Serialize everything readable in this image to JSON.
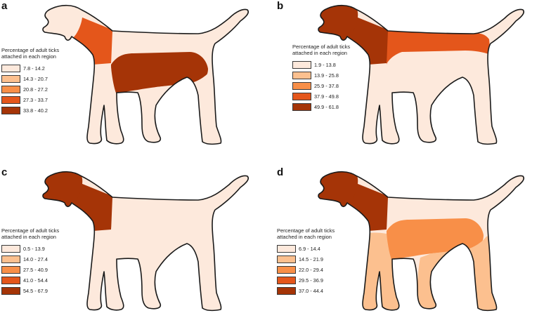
{
  "colors": {
    "outline": "#1a1a1a",
    "body": "#fde9dc"
  },
  "panels": [
    {
      "letter": "a",
      "legend_title": "Percentage of adult ticks\nattached in each region",
      "legend": [
        {
          "range": "7.8 - 14.2",
          "color": "#fde9dc"
        },
        {
          "range": "14.3 - 20.7",
          "color": "#fcc08f"
        },
        {
          "range": "20.8 - 27.2",
          "color": "#f88f48"
        },
        {
          "range": "27.3 - 33.7",
          "color": "#e4561b"
        },
        {
          "range": "33.8 - 40.2",
          "color": "#a53407"
        }
      ],
      "regions": {
        "head": "#fde9dc",
        "neck": "#e4561b",
        "back": "#fde9dc",
        "belly": "#a53407",
        "legs": "#fde9dc"
      }
    },
    {
      "letter": "b",
      "legend_title": "Percentage of adult ticks\nattached in each region",
      "legend": [
        {
          "range": "1.9 - 13.8",
          "color": "#fde9dc"
        },
        {
          "range": "13.9 - 25.8",
          "color": "#fcc08f"
        },
        {
          "range": "25.9 - 37.8",
          "color": "#f88f48"
        },
        {
          "range": "37.9 - 49.8",
          "color": "#e4561b"
        },
        {
          "range": "49.9 - 61.8",
          "color": "#a53407"
        }
      ],
      "regions": {
        "head": "#a53407",
        "neck": "#a53407",
        "back": "#e4561b",
        "belly": "#fde9dc",
        "legs": "#fde9dc"
      }
    },
    {
      "letter": "c",
      "legend_title": "Percentage of adult ticks\nattached in each region",
      "legend": [
        {
          "range": "0.5 - 13.9",
          "color": "#fde9dc"
        },
        {
          "range": "14.0 - 27.4",
          "color": "#fcc08f"
        },
        {
          "range": "27.5 - 40.9",
          "color": "#f88f48"
        },
        {
          "range": "41.0 - 54.4",
          "color": "#e4561b"
        },
        {
          "range": "54.5 - 67.9",
          "color": "#a53407"
        }
      ],
      "regions": {
        "head": "#a53407",
        "neck": "#a53407",
        "back": "#fde9dc",
        "belly": "#fde9dc",
        "legs": "#fde9dc"
      }
    },
    {
      "letter": "d",
      "legend_title": "Percentage of adult ticks\nattached in each region",
      "legend": [
        {
          "range": "6.9 - 14.4",
          "color": "#fde9dc"
        },
        {
          "range": "14.5 - 21.9",
          "color": "#fcc08f"
        },
        {
          "range": "22.0 - 29.4",
          "color": "#f88f48"
        },
        {
          "range": "29.5 - 36.9",
          "color": "#e4561b"
        },
        {
          "range": "37.0 - 44.4",
          "color": "#a53407"
        }
      ],
      "regions": {
        "head": "#a53407",
        "neck": "#a53407",
        "back": "#fde9dc",
        "belly": "#f88f48",
        "legs": "#fcc08f"
      }
    }
  ]
}
